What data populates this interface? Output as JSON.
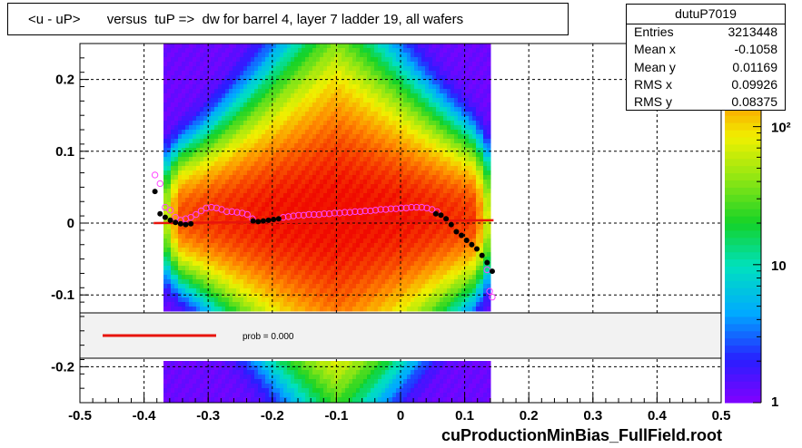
{
  "title": "<u - uP>       versus  tuP =>  dw for barrel 4, layer 7 ladder 19, all wafers",
  "stats": {
    "name": "dutuP7019",
    "rows": [
      {
        "label": "Entries",
        "value": "3213448"
      },
      {
        "label": "Mean x",
        "value": "-0.1058"
      },
      {
        "label": "Mean y",
        "value": "0.01169"
      },
      {
        "label": "RMS x",
        "value": "0.09926"
      },
      {
        "label": "RMS y",
        "value": "0.08375"
      }
    ]
  },
  "legend": {
    "fit_label": "prob = 0.000",
    "fit_color": "#e8140c"
  },
  "footer": "cuProductionMinBias_FullField.root",
  "colors": {
    "black_points": "#000000",
    "magenta_points": "#ff44ff",
    "fit_line": "#e8140c",
    "legend_fill": "#f2f2f2"
  },
  "chart_data": {
    "type": "heatmap",
    "xlim": [
      -0.5,
      0.5
    ],
    "ylim": [
      -0.25,
      0.25
    ],
    "x_ticks": [
      -0.5,
      -0.4,
      -0.3,
      -0.2,
      -0.1,
      0,
      0.1,
      0.2,
      0.3,
      0.4,
      0.5
    ],
    "x_tick_labels": [
      "-0.5",
      "-0.4",
      "-0.3",
      "-0.2",
      "-0.1",
      "0",
      "0.1",
      "0.2",
      "0.3",
      "0.4",
      "0.5"
    ],
    "y_ticks": [
      -0.2,
      -0.1,
      0,
      0.1,
      0.2
    ],
    "y_tick_labels": [
      "-0.2",
      "-0.1",
      "0",
      "0.1",
      "0.2"
    ],
    "grid": true,
    "z_scale": "log",
    "z_ticks": [
      1,
      10,
      100
    ],
    "z_tick_labels": [
      "1",
      "10",
      "10²"
    ],
    "z_range": [
      1,
      400
    ],
    "density": {
      "x_range": [
        -0.37,
        0.14
      ],
      "center_x": -0.1,
      "center_y": 0.01
    },
    "series": [
      {
        "marker": "filled-circle",
        "color": "#000000",
        "points": [
          [
            -0.383,
            0.044
          ],
          [
            -0.375,
            0.013
          ],
          [
            -0.367,
            0.008
          ],
          [
            -0.359,
            0.004
          ],
          [
            -0.351,
            0.001
          ],
          [
            -0.343,
            -0.001
          ],
          [
            -0.335,
            -0.002
          ],
          [
            -0.327,
            -0.001
          ],
          [
            -0.23,
            0.003
          ],
          [
            -0.222,
            0.002
          ],
          [
            -0.214,
            0.003
          ],
          [
            -0.206,
            0.004
          ],
          [
            -0.198,
            0.005
          ],
          [
            -0.19,
            0.006
          ],
          [
            0.055,
            0.013
          ],
          [
            0.063,
            0.011
          ],
          [
            0.071,
            0.006
          ],
          [
            0.079,
            -0.002
          ],
          [
            0.087,
            -0.012
          ],
          [
            0.095,
            -0.017
          ],
          [
            0.103,
            -0.024
          ],
          [
            0.111,
            -0.03
          ],
          [
            0.119,
            -0.036
          ],
          [
            0.127,
            -0.045
          ],
          [
            0.135,
            -0.055
          ],
          [
            0.143,
            -0.067
          ]
        ]
      },
      {
        "marker": "open-circle",
        "color": "#ff44ff",
        "points": [
          [
            -0.383,
            0.067
          ],
          [
            -0.375,
            0.055
          ],
          [
            -0.367,
            0.022
          ],
          [
            -0.359,
            0.018
          ],
          [
            -0.351,
            0.008
          ],
          [
            -0.343,
            0.004
          ],
          [
            -0.335,
            0.006
          ],
          [
            -0.327,
            0.008
          ],
          [
            -0.319,
            0.012
          ],
          [
            -0.311,
            0.017
          ],
          [
            -0.303,
            0.021
          ],
          [
            -0.295,
            0.022
          ],
          [
            -0.287,
            0.021
          ],
          [
            -0.279,
            0.019
          ],
          [
            -0.271,
            0.016
          ],
          [
            -0.263,
            0.016
          ],
          [
            -0.255,
            0.015
          ],
          [
            -0.247,
            0.014
          ],
          [
            -0.239,
            0.012
          ],
          [
            -0.231,
            0.006
          ],
          [
            -0.183,
            0.008
          ],
          [
            -0.175,
            0.009
          ],
          [
            -0.167,
            0.01
          ],
          [
            -0.159,
            0.011
          ],
          [
            -0.151,
            0.011
          ],
          [
            -0.143,
            0.012
          ],
          [
            -0.135,
            0.012
          ],
          [
            -0.127,
            0.012
          ],
          [
            -0.119,
            0.013
          ],
          [
            -0.111,
            0.013
          ],
          [
            -0.103,
            0.014
          ],
          [
            -0.095,
            0.014
          ],
          [
            -0.087,
            0.015
          ],
          [
            -0.079,
            0.015
          ],
          [
            -0.071,
            0.016
          ],
          [
            -0.063,
            0.016
          ],
          [
            -0.055,
            0.017
          ],
          [
            -0.047,
            0.017
          ],
          [
            -0.039,
            0.018
          ],
          [
            -0.031,
            0.019
          ],
          [
            -0.023,
            0.019
          ],
          [
            -0.015,
            0.02
          ],
          [
            -0.007,
            0.02
          ],
          [
            0.001,
            0.021
          ],
          [
            0.009,
            0.021
          ],
          [
            0.017,
            0.022
          ],
          [
            0.025,
            0.022
          ],
          [
            0.033,
            0.022
          ],
          [
            0.041,
            0.021
          ],
          [
            0.049,
            0.019
          ],
          [
            0.057,
            0.016
          ],
          [
            0.135,
            -0.065
          ],
          [
            0.139,
            -0.095
          ],
          [
            0.143,
            -0.103
          ]
        ]
      }
    ],
    "fit_line": {
      "x": [
        -0.385,
        0.145
      ],
      "y": [
        0.0,
        0.004
      ]
    }
  }
}
